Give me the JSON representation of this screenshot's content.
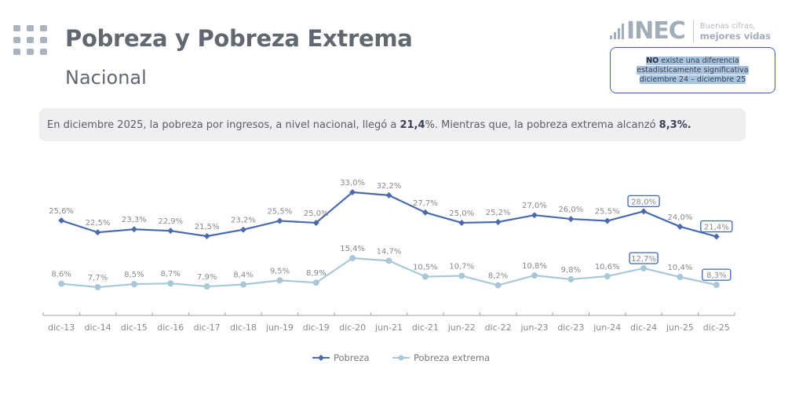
{
  "header": {
    "title": "Pobreza y Pobreza Extrema",
    "subtitle": "Nacional",
    "menu_icon": "grid-dots-icon"
  },
  "logo": {
    "name": "INEC",
    "tagline_1": "Buenas cifras,",
    "tagline_2": "mejores vidas"
  },
  "note": {
    "bold": "NO",
    "line1_rest": " existe una diferencia",
    "line2": "estadísticamente significativa",
    "line3": "diciembre 24 – diciembre 25"
  },
  "summary": {
    "part1": "En diciembre 2025, la pobreza por ingresos, a nivel nacional, llegó a ",
    "value1": "21,4",
    "part2": "%. Mientras que, la pobreza extrema alcanzó ",
    "value2": "8,3%."
  },
  "colors": {
    "pobreza": "#4a6aab",
    "pobreza_extrema": "#a8c8d8",
    "highlight_box": "#3d63b8"
  },
  "chart_data": {
    "type": "line",
    "title": "",
    "xlabel": "",
    "ylabel": "",
    "categories": [
      "dic-13",
      "dic-14",
      "dic-15",
      "dic-16",
      "dic-17",
      "dic-18",
      "jun-19",
      "dic-19",
      "dic-20",
      "jun-21",
      "dic-21",
      "jun-22",
      "dic-22",
      "jun-23",
      "dic-23",
      "jun-24",
      "dic-24",
      "jun-25",
      "dic-25"
    ],
    "series": [
      {
        "name": "Pobreza",
        "marker": "diamond",
        "values": [
          25.6,
          22.5,
          23.3,
          22.9,
          21.5,
          23.2,
          25.5,
          25.0,
          33.0,
          32.2,
          27.7,
          25.0,
          25.2,
          27.0,
          26.0,
          25.5,
          28.0,
          24.0,
          21.4
        ],
        "labels": [
          "25,6%",
          "22,5%",
          "23,3%",
          "22,9%",
          "21,5%",
          "23,2%",
          "25,5%",
          "25,0%",
          "33,0%",
          "32,2%",
          "27,7%",
          "25,0%",
          "25,2%",
          "27,0%",
          "26,0%",
          "25,5%",
          "28,0%",
          "24,0%",
          "21,4%"
        ],
        "highlighted": [
          "dic-24",
          "dic-25"
        ]
      },
      {
        "name": "Pobreza extrema",
        "marker": "circle",
        "values": [
          8.6,
          7.7,
          8.5,
          8.7,
          7.9,
          8.4,
          9.5,
          8.9,
          15.4,
          14.7,
          10.5,
          10.7,
          8.2,
          10.8,
          9.8,
          10.6,
          12.7,
          10.4,
          8.3
        ],
        "labels": [
          "8,6%",
          "7,7%",
          "8,5%",
          "8,7%",
          "7,9%",
          "8,4%",
          "9,5%",
          "8,9%",
          "15,4%",
          "14,7%",
          "10,5%",
          "10,7%",
          "8,2%",
          "10,8%",
          "9,8%",
          "10,6%",
          "12,7%",
          "10,4%",
          "8,3%"
        ],
        "highlighted": [
          "dic-24",
          "dic-25"
        ]
      }
    ],
    "ylim": [
      0,
      35
    ],
    "grid": false,
    "legend": "bottom-center"
  }
}
